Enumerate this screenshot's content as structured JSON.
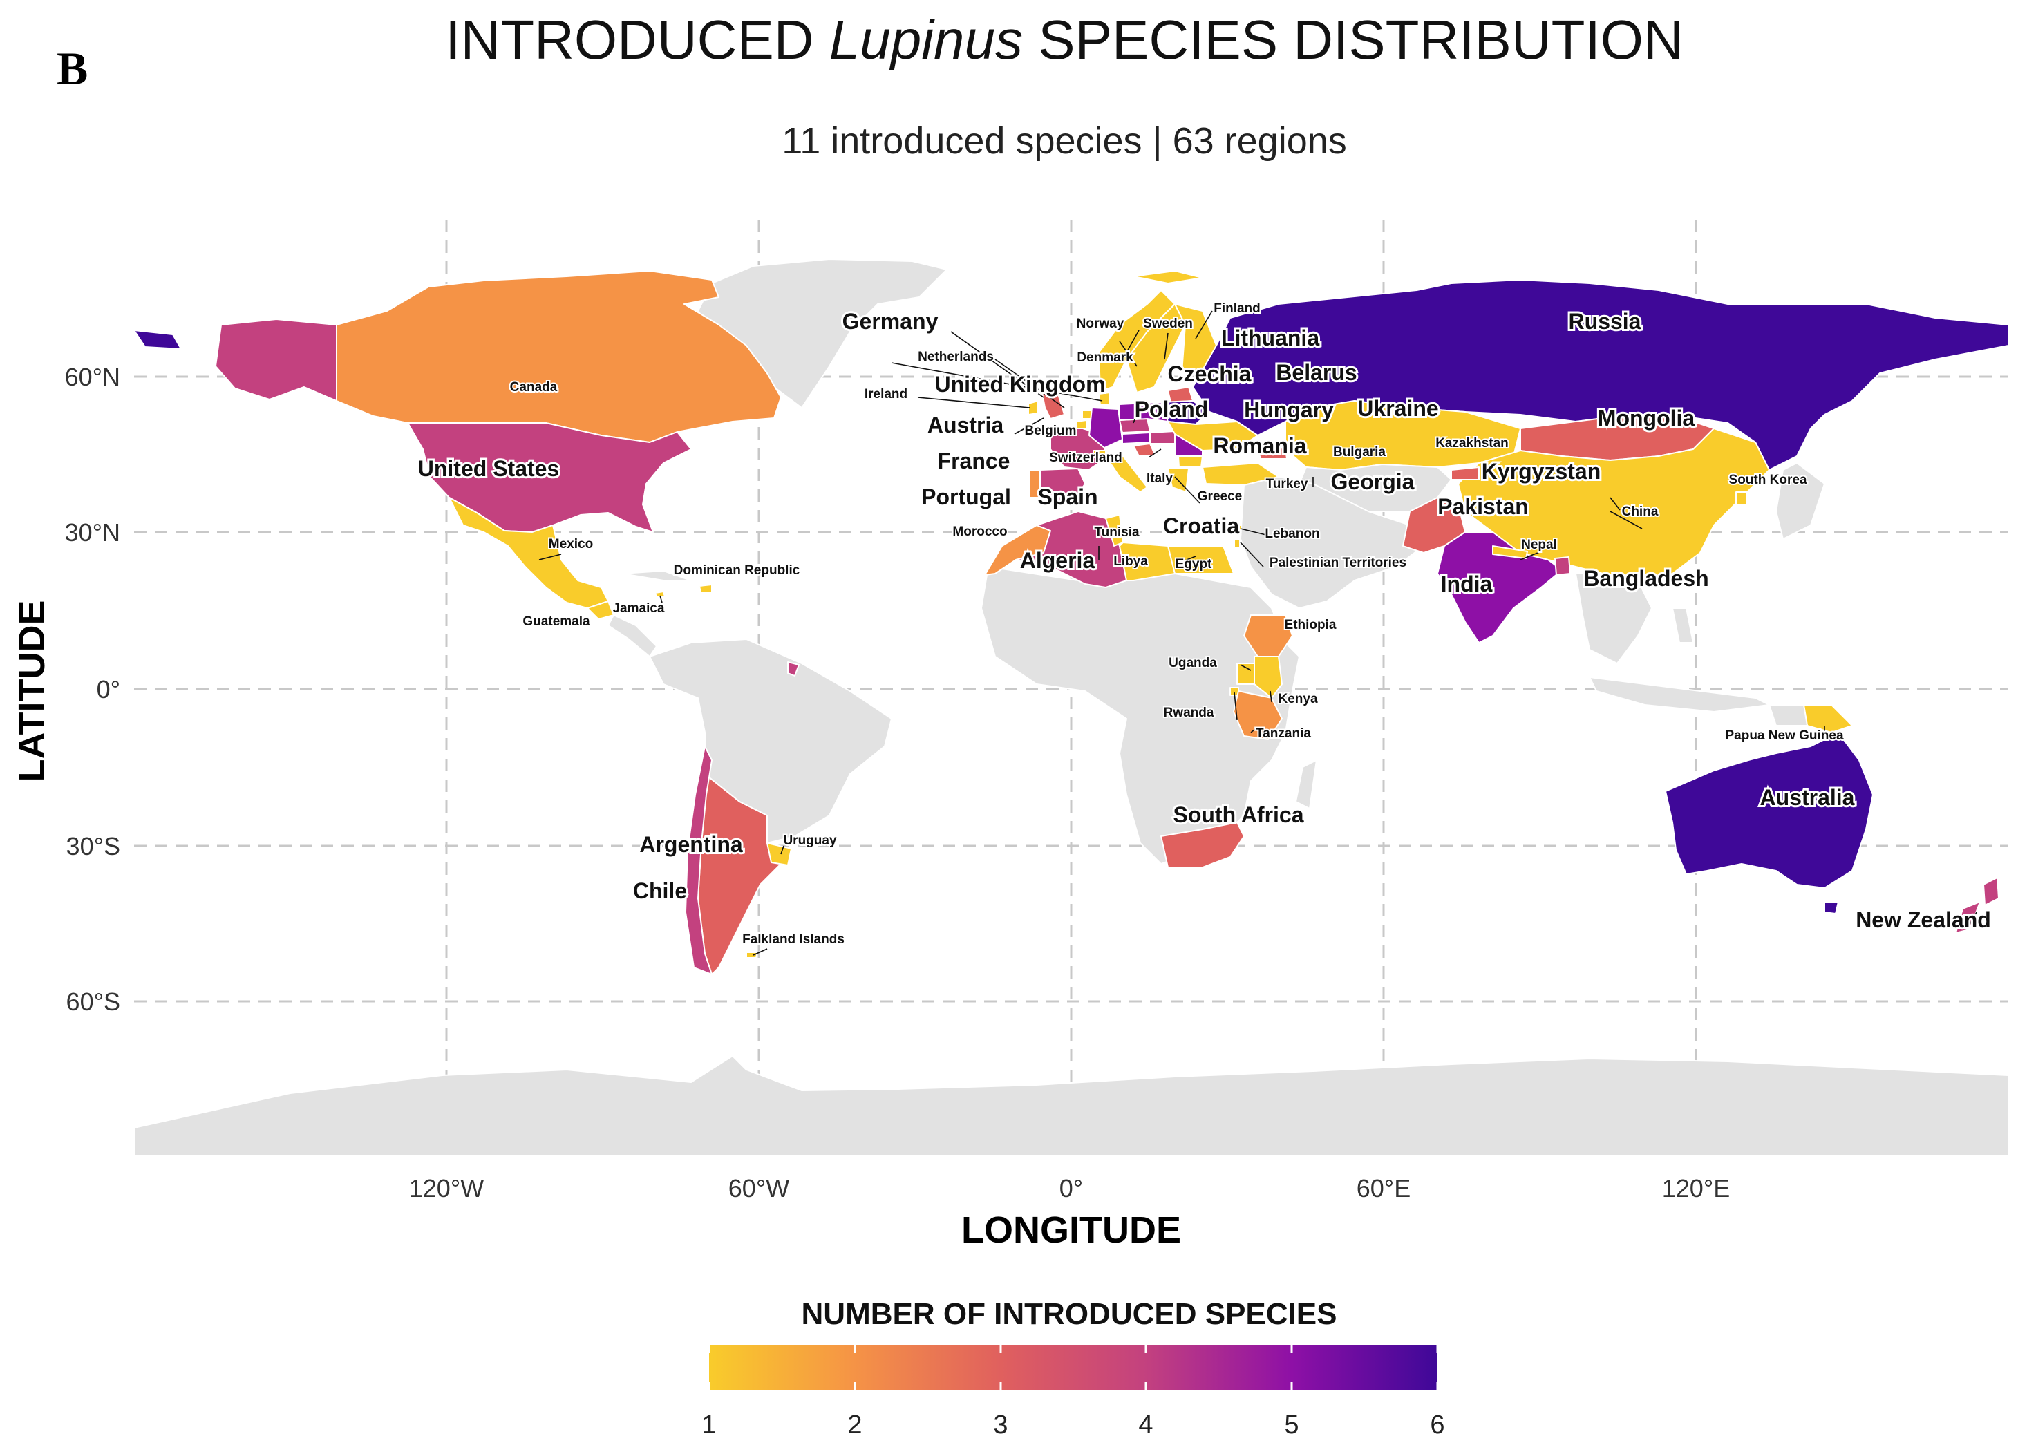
{
  "panel_letter": "B",
  "title": {
    "prefix": "INTRODUCED ",
    "italic": "Lupinus",
    "suffix": " SPECIES DISTRIBUTION"
  },
  "subtitle": "11 introduced species | 63 regions",
  "axes": {
    "xlabel": "LONGITUDE",
    "ylabel": "LATITUDE",
    "x_ticks": [
      "120°W",
      "60°W",
      "0°",
      "60°E",
      "120°E"
    ],
    "y_ticks": [
      "60°N",
      "30°N",
      "0°",
      "30°S",
      "60°S"
    ]
  },
  "legend": {
    "title": "NUMBER OF INTRODUCED SPECIES",
    "ticks": [
      "1",
      "2",
      "3",
      "4",
      "5",
      "6"
    ],
    "colors": [
      "#f9cc2b",
      "#f59346",
      "#e0605e",
      "#c3417f",
      "#8e10a6",
      "#3f0898"
    ]
  },
  "colors": {
    "no_data": "#e2e2e2",
    "grid": "#c8c8c8"
  },
  "chart_data": {
    "type": "choropleth",
    "xlim": [
      -180,
      180
    ],
    "ylim": [
      -90,
      84
    ],
    "grid": true,
    "legend_position": "bottom",
    "regions": [
      {
        "name": "Russia",
        "value": 6,
        "size": "large"
      },
      {
        "name": "Australia",
        "value": 6,
        "size": "large"
      },
      {
        "name": "Belarus",
        "value": 6,
        "size": "large"
      },
      {
        "name": "Romania",
        "value": 5,
        "size": "large"
      },
      {
        "name": "India",
        "value": 5,
        "size": "large"
      },
      {
        "name": "Poland",
        "value": 5,
        "size": "large"
      },
      {
        "name": "Austria",
        "value": 5,
        "size": "large"
      },
      {
        "name": "Germany",
        "value": 5,
        "size": "large"
      },
      {
        "name": "Hungary",
        "value": 4,
        "size": "large"
      },
      {
        "name": "United States",
        "value": 4,
        "size": "large"
      },
      {
        "name": "Chile",
        "value": 4,
        "size": "large"
      },
      {
        "name": "Algeria",
        "value": 4,
        "size": "large"
      },
      {
        "name": "New Zealand",
        "value": 4,
        "size": "large"
      },
      {
        "name": "Spain",
        "value": 4,
        "size": "large"
      },
      {
        "name": "France",
        "value": 4,
        "size": "large"
      },
      {
        "name": "Czechia",
        "value": 4,
        "size": "large"
      },
      {
        "name": "Mongolia",
        "value": 3,
        "size": "large"
      },
      {
        "name": "South Africa",
        "value": 3,
        "size": "large"
      },
      {
        "name": "Argentina",
        "value": 3,
        "size": "large"
      },
      {
        "name": "Pakistan",
        "value": 3,
        "size": "large"
      },
      {
        "name": "Lithuania",
        "value": 3,
        "size": "large"
      },
      {
        "name": "Georgia",
        "value": 3,
        "size": "large"
      },
      {
        "name": "Bangladesh",
        "value": 3,
        "size": "large"
      },
      {
        "name": "United Kingdom",
        "value": 3,
        "size": "large"
      },
      {
        "name": "Croatia",
        "value": 3,
        "size": "large"
      },
      {
        "name": "Kyrgyzstan",
        "value": 3,
        "size": "large"
      },
      {
        "name": "Portugal",
        "value": 2,
        "size": "large"
      },
      {
        "name": "Canada",
        "value": 2,
        "size": "small"
      },
      {
        "name": "Ethiopia",
        "value": 2,
        "size": "small"
      },
      {
        "name": "Tanzania",
        "value": 2,
        "size": "small"
      },
      {
        "name": "Morocco",
        "value": 2,
        "size": "small"
      },
      {
        "name": "Ukraine",
        "value": 1,
        "size": "large"
      },
      {
        "name": "Mexico",
        "value": 1,
        "size": "small"
      },
      {
        "name": "China",
        "value": 1,
        "size": "small"
      },
      {
        "name": "Kazakhstan",
        "value": 1,
        "size": "small"
      },
      {
        "name": "Uruguay",
        "value": 1,
        "size": "small"
      },
      {
        "name": "Kenya",
        "value": 1,
        "size": "small"
      },
      {
        "name": "Papua New Guinea",
        "value": 1,
        "size": "small"
      },
      {
        "name": "Egypt",
        "value": 1,
        "size": "small"
      },
      {
        "name": "Libya",
        "value": 1,
        "size": "small"
      },
      {
        "name": "Finland",
        "value": 1,
        "size": "small"
      },
      {
        "name": "Sweden",
        "value": 1,
        "size": "small"
      },
      {
        "name": "Norway",
        "value": 1,
        "size": "small"
      },
      {
        "name": "Turkey",
        "value": 1,
        "size": "small"
      },
      {
        "name": "Greece",
        "value": 1,
        "size": "small"
      },
      {
        "name": "Italy",
        "value": 1,
        "size": "small"
      },
      {
        "name": "Tunisia",
        "value": 1,
        "size": "small"
      },
      {
        "name": "Uganda",
        "value": 1,
        "size": "small"
      },
      {
        "name": "Rwanda",
        "value": 1,
        "size": "small"
      },
      {
        "name": "Guatemala",
        "value": 1,
        "size": "small"
      },
      {
        "name": "Jamaica",
        "value": 1,
        "size": "small"
      },
      {
        "name": "Dominican Republic",
        "value": 1,
        "size": "small"
      },
      {
        "name": "Ireland",
        "value": 1,
        "size": "small"
      },
      {
        "name": "Netherlands",
        "value": 1,
        "size": "small"
      },
      {
        "name": "Denmark",
        "value": 1,
        "size": "small"
      },
      {
        "name": "Belgium",
        "value": 1,
        "size": "small"
      },
      {
        "name": "Switzerland",
        "value": 1,
        "size": "small"
      },
      {
        "name": "Bulgaria",
        "value": 1,
        "size": "small"
      },
      {
        "name": "Lebanon",
        "value": 1,
        "size": "small"
      },
      {
        "name": "Palestinian Territories",
        "value": 1,
        "size": "small"
      },
      {
        "name": "Nepal",
        "value": 1,
        "size": "small"
      },
      {
        "name": "South Korea",
        "value": 1,
        "size": "small"
      },
      {
        "name": "Falkland Islands",
        "value": 1,
        "size": "small"
      }
    ]
  }
}
